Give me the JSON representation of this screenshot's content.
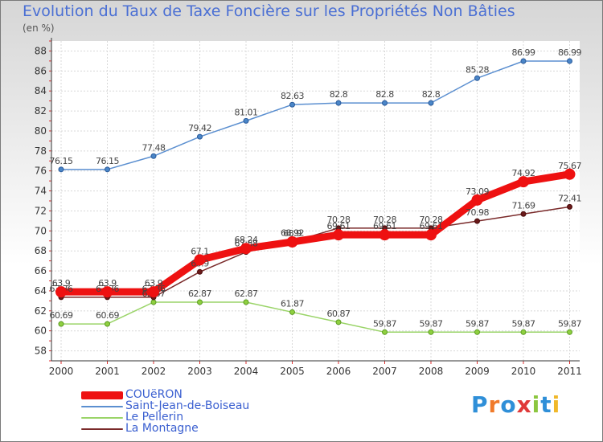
{
  "title": "Evolution du Taux de Taxe Foncière sur les Propriétés Non Bâties",
  "unit": "(en %)",
  "brand": {
    "letters": [
      "P",
      "r",
      "o",
      "x",
      "i",
      "t",
      "i"
    ],
    "colors": [
      "#2f8fd8",
      "#f07a2a",
      "#2f8fd8",
      "#e03a3a",
      "#8cc63f",
      "#2f8fd8",
      "#f0b82a"
    ]
  },
  "chart_data": {
    "type": "line",
    "title": "Evolution du Taux de Taxe Foncière sur les Propriétés Non Bâties",
    "ylabel": "(en %)",
    "xlabel": "",
    "ylim": [
      57,
      89
    ],
    "yticks": [
      58,
      60,
      62,
      64,
      66,
      68,
      70,
      72,
      74,
      76,
      78,
      80,
      82,
      84,
      86,
      88
    ],
    "grid": true,
    "categories": [
      "2000",
      "2001",
      "2002",
      "2003",
      "2004",
      "2005",
      "2006",
      "2007",
      "2008",
      "2009",
      "2010",
      "2011"
    ],
    "series": [
      {
        "name": "Saint-Jean-de-Boiseau",
        "color": "#5b8fd0",
        "values": [
          76.15,
          76.15,
          77.48,
          79.42,
          81.01,
          82.63,
          82.8,
          82.8,
          82.8,
          85.28,
          86.99,
          86.99
        ],
        "labels": [
          "76.15",
          "76.15",
          "77.48",
          "79.42",
          "81.01",
          "82.63",
          "82.8",
          "82.8",
          "82.8",
          "85.28",
          "86.99",
          "86.99"
        ]
      },
      {
        "name": "Le Pellerin",
        "color": "#9ad468",
        "values": [
          60.69,
          60.69,
          62.87,
          62.87,
          62.87,
          61.87,
          60.87,
          59.87,
          59.87,
          59.87,
          59.87,
          59.87
        ],
        "labels": [
          "60.69",
          "60.69",
          "62.87",
          "62.87",
          "62.87",
          "61.87",
          "60.87",
          "59.87",
          "59.87",
          "59.87",
          "59.87",
          "59.87"
        ]
      },
      {
        "name": "La Montagne",
        "color": "#7a2a2a",
        "values": [
          63.36,
          63.36,
          63.36,
          65.9,
          67.88,
          68.92,
          70.28,
          70.28,
          70.28,
          70.98,
          71.69,
          72.41
        ],
        "labels": [
          "63.36",
          "63.36",
          "63.36",
          "65.9",
          "67.88",
          "68.92",
          "70.28",
          "70.28",
          "70.28",
          "70.98",
          "71.69",
          "72.41"
        ]
      },
      {
        "name": "COUëRON",
        "color": "#ee1111",
        "values": [
          63.9,
          63.9,
          63.9,
          67.1,
          68.24,
          68.9,
          69.61,
          69.61,
          69.61,
          73.09,
          74.92,
          75.67
        ],
        "labels": [
          "63.9",
          "63.9",
          "63.9",
          "67.1",
          "68.24",
          "68.9",
          "69.61",
          "69.61",
          "69.61",
          "73.09",
          "74.92",
          "75.67"
        ]
      }
    ]
  },
  "legend": [
    {
      "label": "COUëRON",
      "color": "#ee1111",
      "text_color": "#3a5fd0"
    },
    {
      "label": "Saint-Jean-de-Boiseau",
      "color": "#5b8fd0",
      "text_color": "#3a5fd0"
    },
    {
      "label": "Le Pellerin",
      "color": "#9ad468",
      "text_color": "#3a5fd0"
    },
    {
      "label": "La Montagne",
      "color": "#7a2a2a",
      "text_color": "#3a5fd0"
    }
  ]
}
